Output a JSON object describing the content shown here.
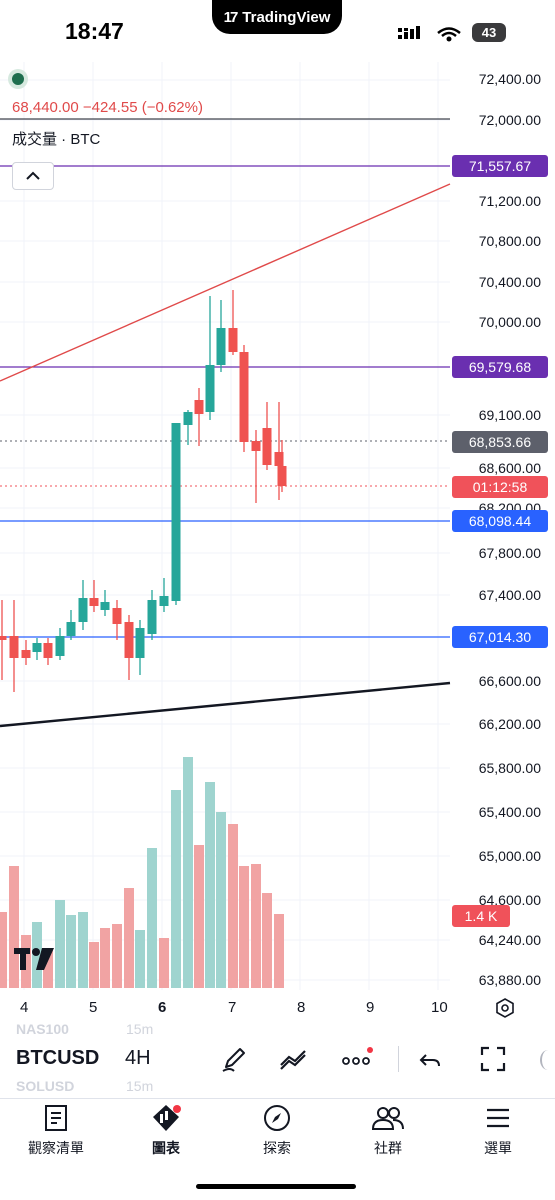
{
  "status_bar": {
    "time": "18:47",
    "app_pill": "TradingView",
    "battery": "43"
  },
  "legend": {
    "price_change": "68,440.00 −424.55 (−0.62%)",
    "volume_label": "成交量 · BTC"
  },
  "price_axis": {
    "ticks": [
      "72,400.00",
      "72,000.00",
      "71,200.00",
      "70,800.00",
      "70,400.00",
      "70,000.00",
      "69,100.00",
      "68,600.00",
      "68,200.00",
      "67,800.00",
      "67,400.00",
      "66,600.00",
      "66,200.00",
      "65,800.00",
      "65,400.00",
      "65,000.00",
      "64,600.00",
      "64,240.00",
      "63,880.00"
    ],
    "badges": [
      {
        "text": "71,557.67",
        "color": "#6a2fb0"
      },
      {
        "text": "69,579.68",
        "color": "#6a2fb0"
      },
      {
        "text": "68,853.66",
        "color": "#5d606b"
      },
      {
        "text": "01:12:58",
        "color": "#f0525a"
      },
      {
        "text": "68,098.44",
        "color": "#2962ff"
      },
      {
        "text": "67,014.30",
        "color": "#2962ff"
      },
      {
        "text": "1.4 K",
        "color": "#f0525a"
      }
    ]
  },
  "time_axis": [
    "4",
    "5",
    "6",
    "7",
    "8",
    "9",
    "10"
  ],
  "toolbar": {
    "ghost_symbol_above": "NAS100",
    "ghost_tf_above": "15m",
    "symbol": "BTCUSD",
    "timeframe": "4H",
    "ghost_symbol_below": "SOLUSD",
    "ghost_tf_below": "15m"
  },
  "tabs": [
    {
      "label": "觀察清單",
      "icon": "watchlist-icon"
    },
    {
      "label": "圖表",
      "icon": "chart-icon"
    },
    {
      "label": "探索",
      "icon": "compass-icon"
    },
    {
      "label": "社群",
      "icon": "community-icon"
    },
    {
      "label": "選單",
      "icon": "menu-icon"
    }
  ],
  "colors": {
    "up": "#26a69a",
    "down": "#ef5350",
    "volume_up": "#9fd4cf",
    "volume_down": "#f1a3a3"
  }
}
